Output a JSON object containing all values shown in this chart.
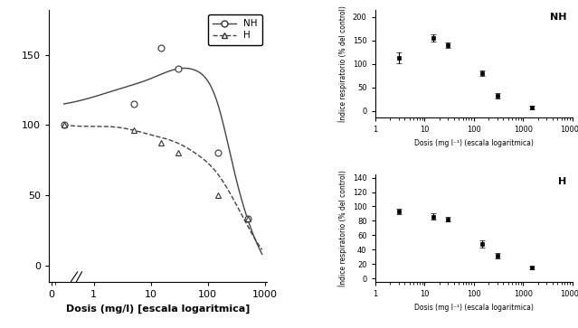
{
  "left_panel": {
    "nh_points_x": [
      0.3,
      5,
      15,
      30,
      150,
      500
    ],
    "nh_points_y": [
      100,
      115,
      155,
      140,
      80,
      33
    ],
    "h_points_x": [
      0.3,
      5,
      15,
      30,
      150,
      500
    ],
    "h_points_y": [
      100,
      96,
      87,
      80,
      50,
      33
    ],
    "xlabel": "Dosis (mg/l) [escala logaritmica]",
    "ylim": [
      -12,
      182
    ],
    "yticks": [
      0,
      50,
      100,
      150
    ],
    "legend_nh": "NH",
    "legend_h": "H",
    "line_color": "#444444",
    "point_color": "#333333"
  },
  "top_right_panel": {
    "points_x": [
      3,
      15,
      30,
      150,
      300,
      1500
    ],
    "points_y": [
      113,
      155,
      140,
      80,
      32,
      7
    ],
    "yerr": [
      12,
      8,
      6,
      5,
      5,
      3
    ],
    "xlabel": "Dosis (mg l⁻¹) (escala logaritmica)",
    "ylabel": "Índice respiratorio (% del control)",
    "ylim": [
      -15,
      215
    ],
    "yticks": [
      0,
      50,
      100,
      150,
      200
    ],
    "xlim": [
      1,
      8000
    ],
    "label": "NH"
  },
  "bottom_right_panel": {
    "points_x": [
      3,
      15,
      30,
      150,
      300,
      1500
    ],
    "points_y": [
      93,
      86,
      82,
      48,
      32,
      15
    ],
    "yerr": [
      4,
      4,
      3,
      5,
      4,
      2
    ],
    "xlabel": "Dosis (mg l⁻¹) (escala logaritmica)",
    "ylabel": "Índice respiratorio (% del control)",
    "ylim": [
      -5,
      145
    ],
    "yticks": [
      0,
      20,
      40,
      60,
      80,
      100,
      120,
      140
    ],
    "xlim": [
      1,
      8000
    ],
    "label": "H"
  }
}
